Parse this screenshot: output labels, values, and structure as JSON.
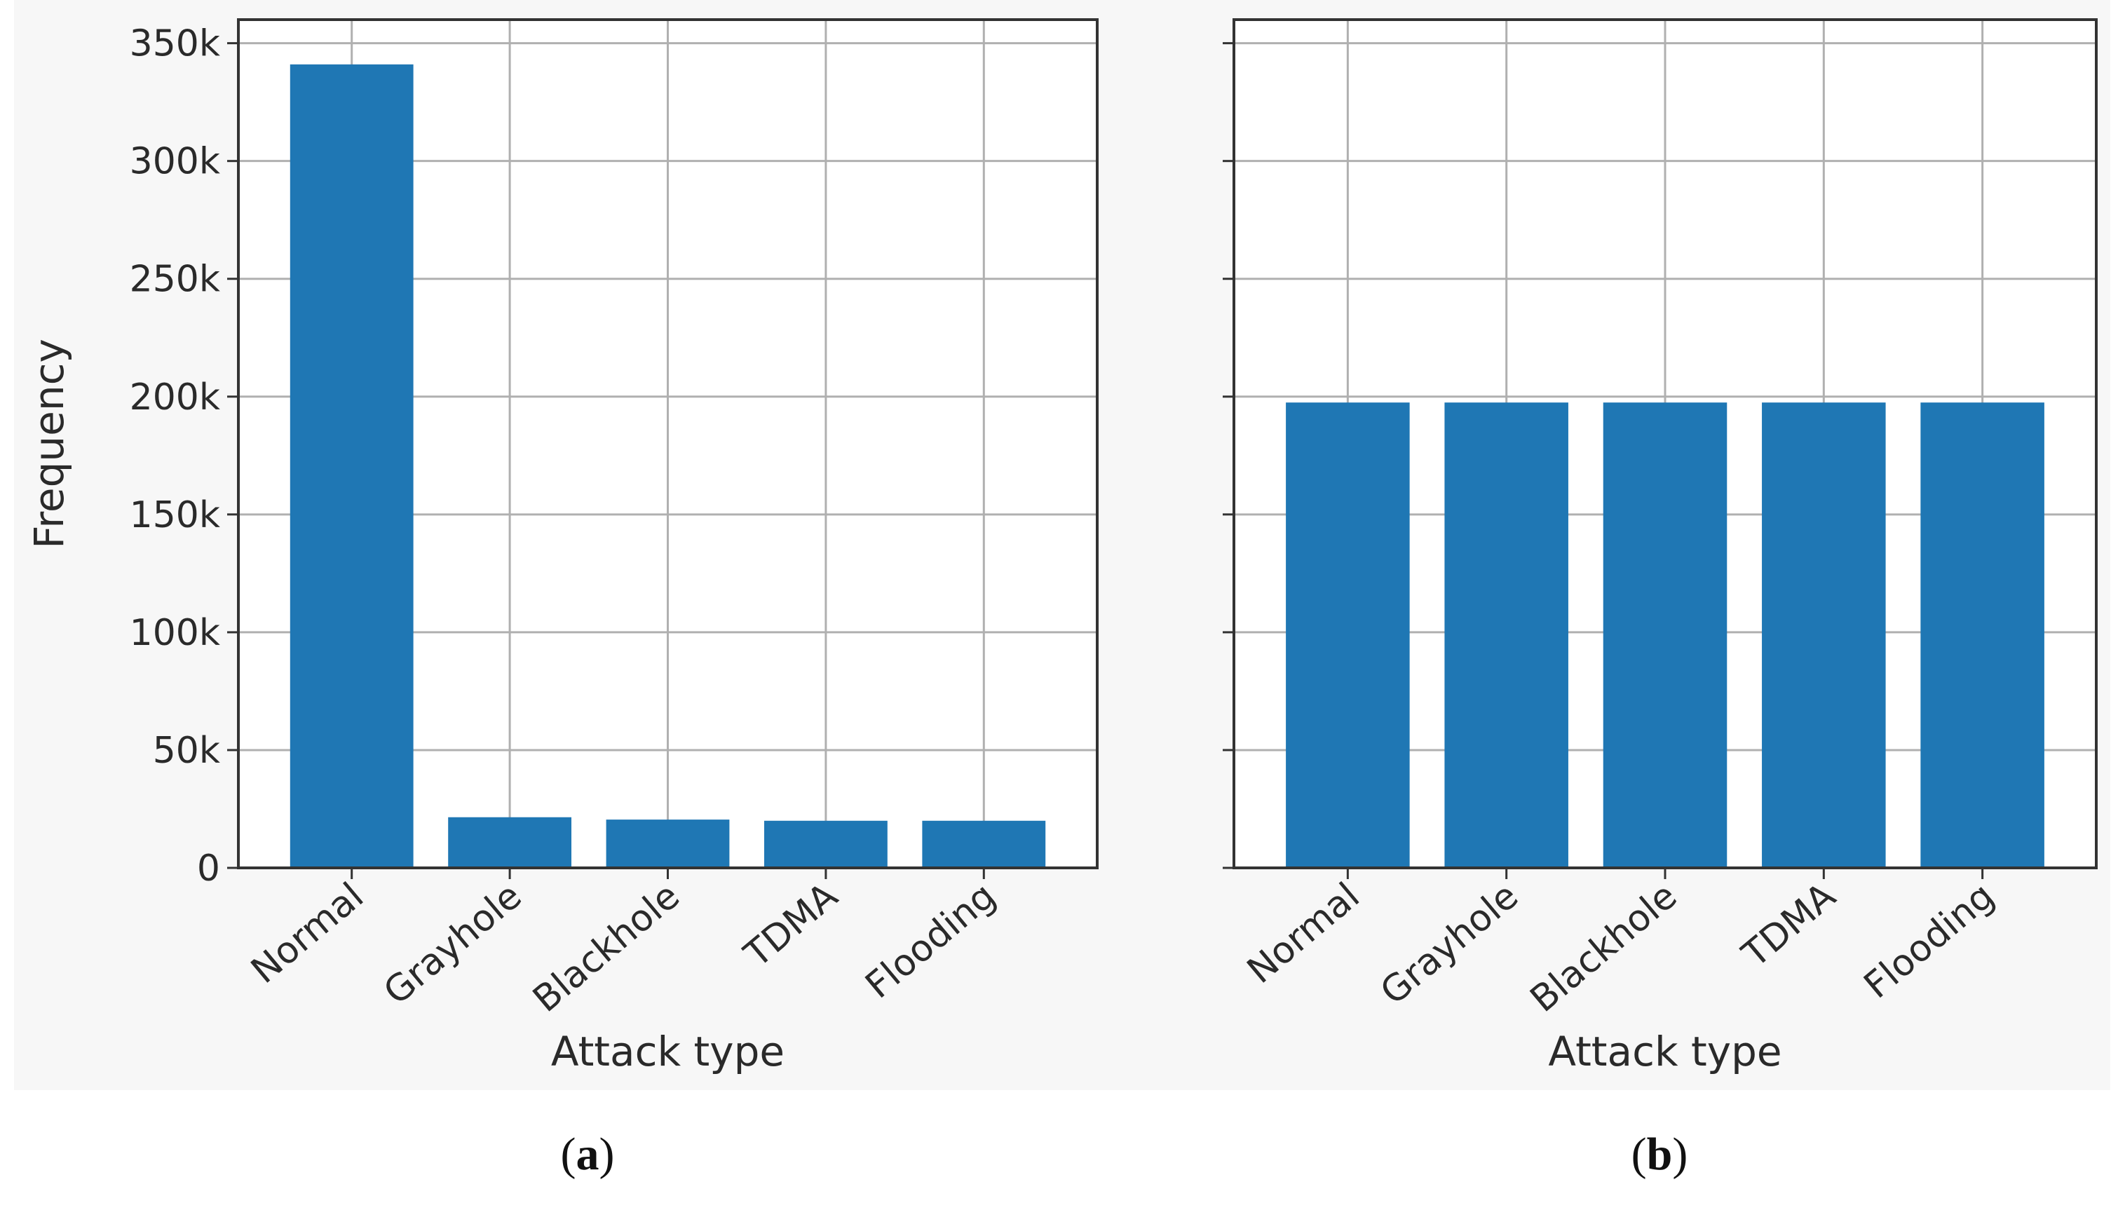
{
  "colors": {
    "bar": "#1f77b4",
    "grid": "#b0b0b0",
    "axis": "#333333",
    "plot_area_background": "#ffffff",
    "figure_background": "#f7f7f7"
  },
  "chart_data": [
    {
      "type": "bar",
      "panel_label": "a",
      "categories": [
        "Normal",
        "Grayhole",
        "Blackhole",
        "TDMA",
        "Flooding"
      ],
      "values": [
        341000,
        21500,
        20500,
        20000,
        20000
      ],
      "title": "",
      "xlabel": "Attack type",
      "ylabel": "Frequency",
      "ylim": [
        0,
        360000
      ],
      "yticks": [
        0,
        50000,
        100000,
        150000,
        200000,
        250000,
        300000,
        350000
      ],
      "ytick_labels": [
        "0",
        "50k",
        "100k",
        "150k",
        "200k",
        "250k",
        "300k",
        "350k"
      ],
      "grid": true,
      "legend": "none"
    },
    {
      "type": "bar",
      "panel_label": "b",
      "categories": [
        "Normal",
        "Grayhole",
        "Blackhole",
        "TDMA",
        "Flooding"
      ],
      "values": [
        197500,
        197500,
        197500,
        197500,
        197500
      ],
      "title": "",
      "xlabel": "Attack type",
      "ylabel": "",
      "ylim": [
        0,
        360000
      ],
      "yticks": [
        0,
        50000,
        100000,
        150000,
        200000,
        250000,
        300000,
        350000
      ],
      "ytick_labels": [],
      "grid": true,
      "legend": "none"
    }
  ]
}
